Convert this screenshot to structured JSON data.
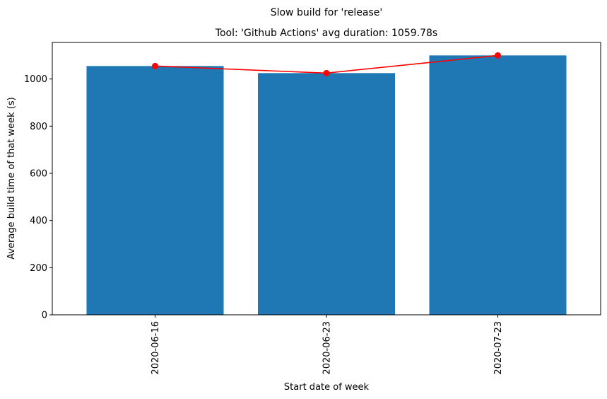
{
  "chart_data": {
    "type": "bar",
    "suptitle": "Slow build for 'release'",
    "title": "Tool: 'Github Actions' avg duration: 1059.78s",
    "xlabel": "Start date of week",
    "ylabel": "Average build time of that week (s)",
    "categories": [
      "2020-06-16",
      "2020-06-23",
      "2020-07-23"
    ],
    "values": [
      1055,
      1025,
      1100
    ],
    "line_values": [
      1055,
      1025,
      1100
    ],
    "ylim": [
      0,
      1155
    ],
    "yticks": [
      0,
      200,
      400,
      600,
      800,
      1000
    ],
    "grid": false,
    "bar_color": "#1f77b4",
    "line_color": "#ff0000"
  }
}
